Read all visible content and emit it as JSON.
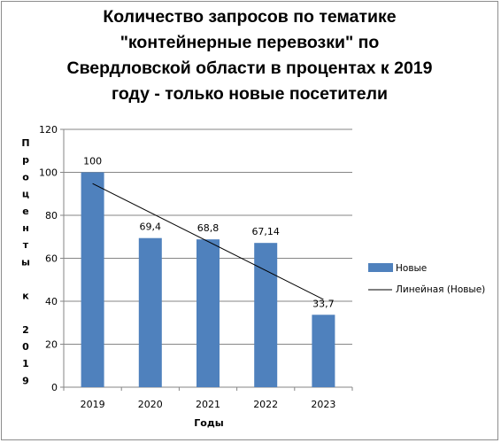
{
  "chart_data": {
    "type": "bar",
    "title": [
      "Количество запросов по тематике",
      "\"контейнерные перевозки\" по",
      "Свердловской области в процентах к 2019",
      "году - только новые посетители"
    ],
    "categories": [
      "2019",
      "2020",
      "2021",
      "2022",
      "2023"
    ],
    "series": [
      {
        "name": "Новые",
        "values": [
          100,
          69.4,
          68.8,
          67.14,
          33.7
        ],
        "labels": [
          "100",
          "69,4",
          "68,8",
          "67,14",
          "33,7"
        ],
        "color": "#4f81bd"
      }
    ],
    "trendline": {
      "name": "Линейная (Новые)",
      "type": "linear",
      "color": "#000000"
    },
    "ylim": [
      0,
      120
    ],
    "yticks": [
      0,
      20,
      40,
      60,
      80,
      100,
      120
    ],
    "xlabel": "Годы",
    "ylabel": "Проценты к 2019",
    "grid": true,
    "legend": "right"
  }
}
